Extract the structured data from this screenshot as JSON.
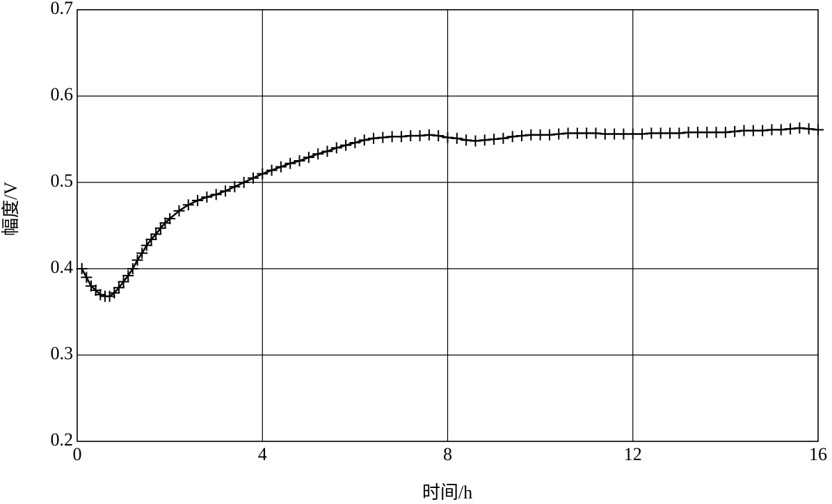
{
  "chart_data": {
    "type": "line",
    "x_label": "时间/h",
    "y_label": "幅度/V",
    "x": [
      0.1,
      0.2,
      0.3,
      0.4,
      0.5,
      0.6,
      0.7,
      0.8,
      0.9,
      1.0,
      1.1,
      1.2,
      1.3,
      1.4,
      1.5,
      1.6,
      1.7,
      1.8,
      1.9,
      2.0,
      2.2,
      2.4,
      2.6,
      2.8,
      3.0,
      3.2,
      3.4,
      3.6,
      3.8,
      4.0,
      4.2,
      4.4,
      4.6,
      4.8,
      5.0,
      5.2,
      5.4,
      5.6,
      5.8,
      6.0,
      6.2,
      6.4,
      6.6,
      6.8,
      7.0,
      7.2,
      7.4,
      7.6,
      7.8,
      8.0,
      8.2,
      8.4,
      8.6,
      8.8,
      9.0,
      9.2,
      9.4,
      9.6,
      9.8,
      10.0,
      10.2,
      10.4,
      10.6,
      10.8,
      11.0,
      11.2,
      11.4,
      11.6,
      11.8,
      12.0,
      12.2,
      12.4,
      12.6,
      12.8,
      13.0,
      13.2,
      13.4,
      13.6,
      13.8,
      14.0,
      14.2,
      14.4,
      14.6,
      14.8,
      15.0,
      15.2,
      15.4,
      15.6,
      15.8,
      16.0
    ],
    "values": [
      0.4,
      0.39,
      0.38,
      0.375,
      0.37,
      0.368,
      0.368,
      0.372,
      0.378,
      0.385,
      0.392,
      0.4,
      0.41,
      0.418,
      0.427,
      0.434,
      0.44,
      0.447,
      0.453,
      0.458,
      0.467,
      0.474,
      0.479,
      0.483,
      0.486,
      0.49,
      0.495,
      0.5,
      0.505,
      0.51,
      0.514,
      0.518,
      0.522,
      0.525,
      0.529,
      0.533,
      0.536,
      0.54,
      0.543,
      0.546,
      0.549,
      0.551,
      0.552,
      0.553,
      0.553,
      0.554,
      0.554,
      0.555,
      0.554,
      0.552,
      0.551,
      0.549,
      0.548,
      0.549,
      0.55,
      0.551,
      0.553,
      0.554,
      0.555,
      0.555,
      0.555,
      0.556,
      0.557,
      0.557,
      0.557,
      0.557,
      0.556,
      0.556,
      0.556,
      0.556,
      0.556,
      0.557,
      0.557,
      0.557,
      0.557,
      0.558,
      0.558,
      0.558,
      0.558,
      0.558,
      0.559,
      0.56,
      0.56,
      0.56,
      0.561,
      0.561,
      0.562,
      0.563,
      0.562,
      0.561
    ],
    "color": "#000000",
    "xlim": [
      0,
      16
    ],
    "xticks": [
      0,
      4,
      8,
      12,
      16
    ],
    "ylim": [
      0.2,
      0.7
    ],
    "yticks": [
      0.2,
      0.3,
      0.4,
      0.5,
      0.6,
      0.7
    ],
    "grid": true
  }
}
